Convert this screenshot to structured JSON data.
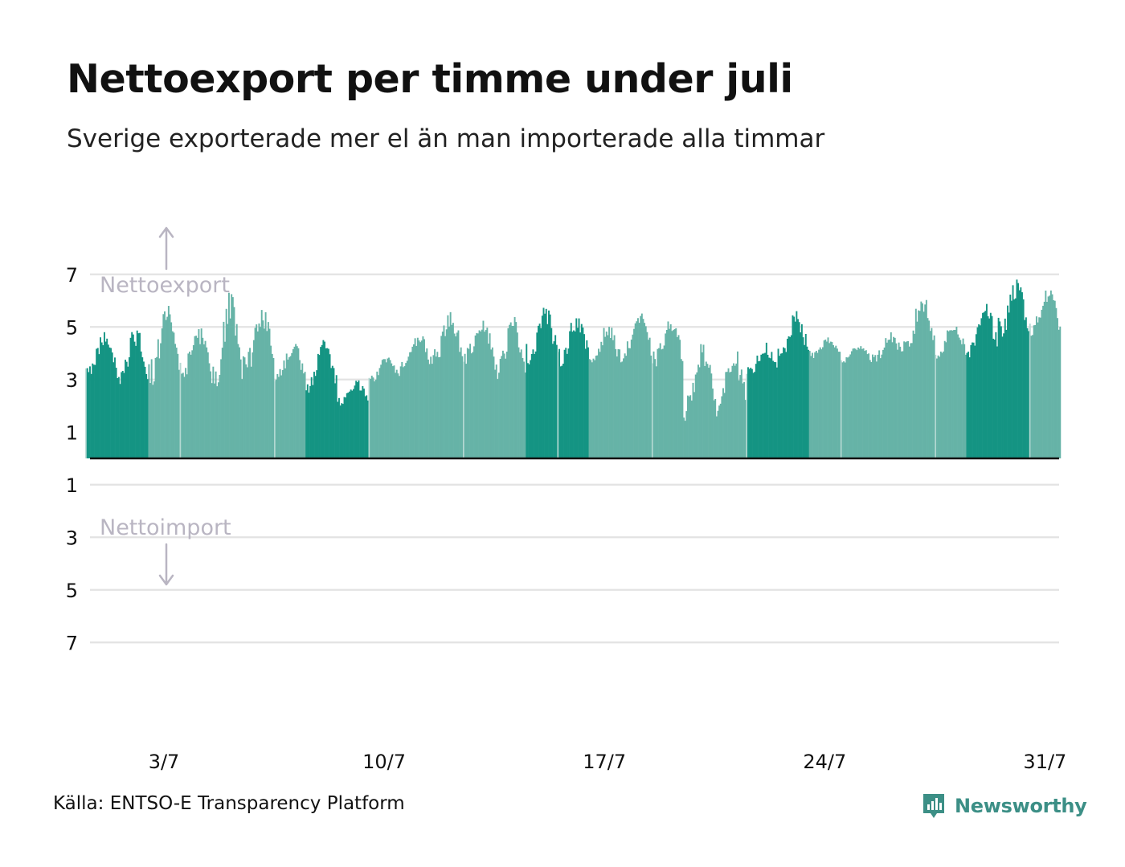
{
  "header": {
    "title": "Nettoexport per timme under juli",
    "subtitle": "Sverige exporterade mer el än man importerade alla timmar"
  },
  "footer": {
    "source": "Källa: ENTSO-E Transparency Platform",
    "brand": "Newsworthy",
    "brand_icon": "newsworthy-logo-icon"
  },
  "chart_data": {
    "type": "bar",
    "title": "Nettoexport per timme under juli",
    "subtitle": "Sverige exporterade mer el än man importerade alla timmar",
    "xlabel": "",
    "ylabel": "",
    "ylim": [
      -7,
      7
    ],
    "grid": true,
    "legend": "none",
    "annotations": {
      "up": "Nettoexport",
      "down": "Nettoimport"
    },
    "y_ticks": [
      {
        "value": 7,
        "label": "7"
      },
      {
        "value": 5,
        "label": "5"
      },
      {
        "value": 3,
        "label": "3"
      },
      {
        "value": 1,
        "label": "1"
      },
      {
        "value": -1,
        "label": "1"
      },
      {
        "value": -3,
        "label": "3"
      },
      {
        "value": -5,
        "label": "5"
      },
      {
        "value": -7,
        "label": "7"
      }
    ],
    "x_ticks": [
      {
        "day": 3,
        "label": "3/7"
      },
      {
        "day": 10,
        "label": "10/7"
      },
      {
        "day": 17,
        "label": "17/7"
      },
      {
        "day": 24,
        "label": "24/7"
      },
      {
        "day": 31,
        "label": "31/7"
      }
    ],
    "x_domain_days": [
      0.65,
      31.45
    ],
    "colors": {
      "weekday": "#66b3a7",
      "weekend": "#149483",
      "light": "#b5d9d3",
      "axis": "#111111",
      "grid": "#e3e3e3",
      "annotation": "#b9b5c2"
    },
    "weekend_days": [
      1,
      2,
      8,
      9,
      15,
      16,
      22,
      23,
      29,
      30
    ],
    "daily_net_export": [
      {
        "day": 1,
        "min": 3.0,
        "max": 4.8
      },
      {
        "day": 2,
        "min": 2.6,
        "max": 5.0
      },
      {
        "day": 3,
        "min": 2.8,
        "max": 5.8
      },
      {
        "day": 4,
        "min": 3.0,
        "max": 5.0
      },
      {
        "day": 5,
        "min": 2.3,
        "max": 6.3
      },
      {
        "day": 6,
        "min": 3.0,
        "max": 5.9
      },
      {
        "day": 7,
        "min": 2.8,
        "max": 4.5
      },
      {
        "day": 8,
        "min": 2.5,
        "max": 4.5
      },
      {
        "day": 9,
        "min": 2.0,
        "max": 3.0
      },
      {
        "day": 10,
        "min": 2.9,
        "max": 3.9
      },
      {
        "day": 11,
        "min": 3.3,
        "max": 4.8
      },
      {
        "day": 12,
        "min": 3.5,
        "max": 5.6
      },
      {
        "day": 13,
        "min": 3.6,
        "max": 5.4
      },
      {
        "day": 14,
        "min": 3.0,
        "max": 5.4
      },
      {
        "day": 15,
        "min": 3.5,
        "max": 5.9
      },
      {
        "day": 16,
        "min": 3.5,
        "max": 5.5
      },
      {
        "day": 17,
        "min": 3.5,
        "max": 5.1
      },
      {
        "day": 18,
        "min": 3.6,
        "max": 5.6
      },
      {
        "day": 19,
        "min": 3.5,
        "max": 5.3
      },
      {
        "day": 20,
        "min": 1.4,
        "max": 4.6
      },
      {
        "day": 21,
        "min": 1.6,
        "max": 4.3
      },
      {
        "day": 22,
        "min": 3.0,
        "max": 4.4
      },
      {
        "day": 23,
        "min": 3.6,
        "max": 5.6
      },
      {
        "day": 24,
        "min": 3.8,
        "max": 4.6
      },
      {
        "day": 25,
        "min": 3.6,
        "max": 4.4
      },
      {
        "day": 26,
        "min": 3.6,
        "max": 4.8
      },
      {
        "day": 27,
        "min": 3.8,
        "max": 6.3
      },
      {
        "day": 28,
        "min": 3.8,
        "max": 5.2
      },
      {
        "day": 29,
        "min": 3.6,
        "max": 6.2
      },
      {
        "day": 30,
        "min": 4.5,
        "max": 6.8
      },
      {
        "day": 31,
        "min": 4.6,
        "max": 6.5
      }
    ]
  }
}
